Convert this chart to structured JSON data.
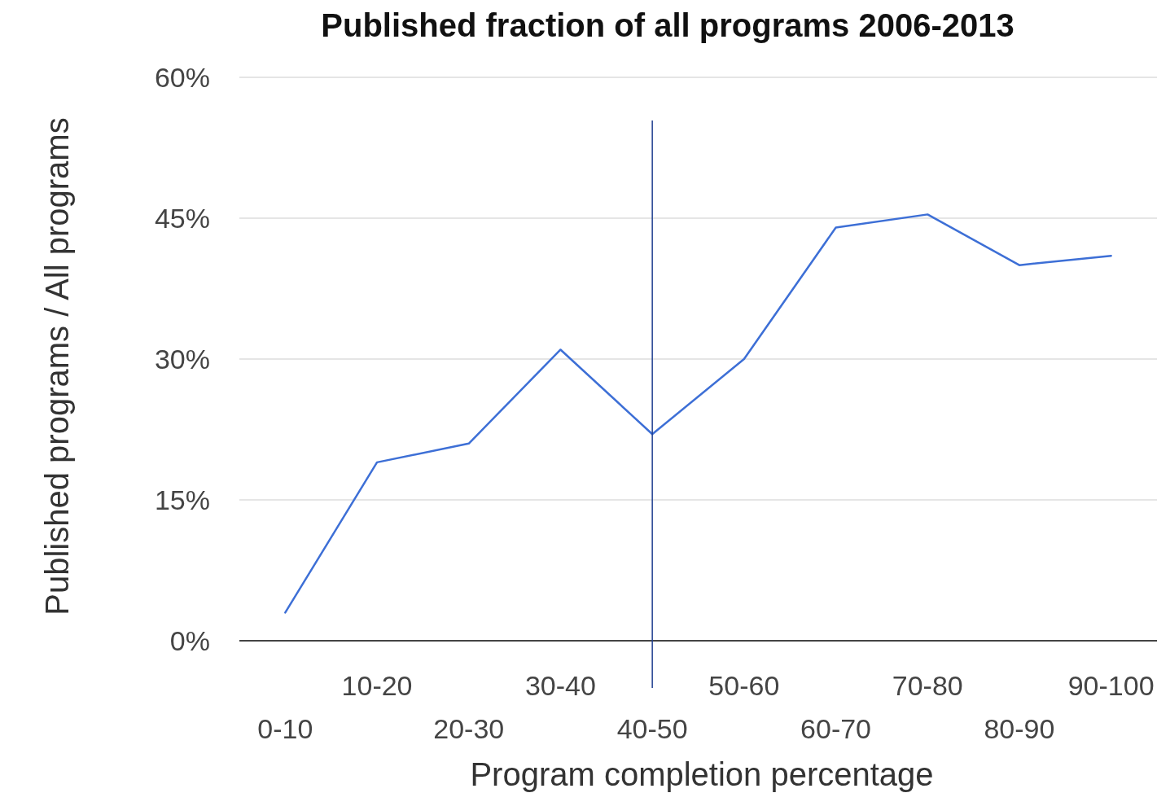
{
  "chart_data": {
    "type": "line",
    "title": "Published fraction of all programs 2006-2013",
    "xlabel": "Program completion percentage",
    "ylabel": "Published programs / All programs",
    "categories": [
      "0-10",
      "10-20",
      "20-30",
      "30-40",
      "40-50",
      "50-60",
      "60-70",
      "70-80",
      "80-90",
      "90-100"
    ],
    "series": [
      {
        "color": "#3d6fd6",
        "values": [
          3,
          19,
          21,
          31,
          22,
          30,
          44,
          45.4,
          40,
          41
        ]
      }
    ],
    "ylim": [
      0,
      60
    ],
    "yticks": [
      {
        "value": 0,
        "label": "0%"
      },
      {
        "value": 15,
        "label": "15%"
      },
      {
        "value": 30,
        "label": "30%"
      },
      {
        "value": 45,
        "label": "45%"
      },
      {
        "value": 60,
        "label": "60%"
      }
    ],
    "grid": "y",
    "marker": "none",
    "line_style": "solid",
    "ref_lines": [
      {
        "axis": "x",
        "value": "40-50",
        "color": "#1f3f8f"
      }
    ]
  }
}
